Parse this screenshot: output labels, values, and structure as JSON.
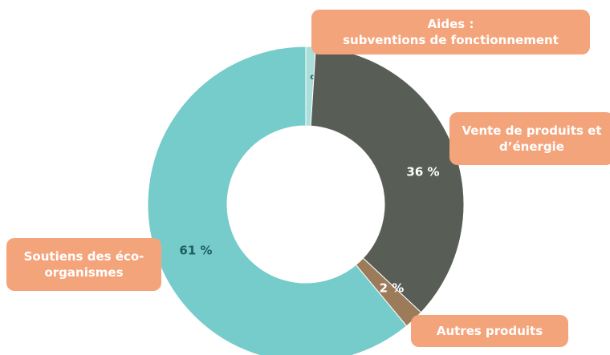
{
  "chart_data": {
    "type": "donut",
    "categories": [
      "Aides :\nsubventions de fonctionnement",
      "Vente de produits et\nd’énergie",
      "Autres produits",
      "Soutiens des éco-\norganismes"
    ],
    "values": [
      1,
      36,
      2,
      61
    ],
    "value_labels": [
      "1 %",
      "36 %",
      "2 %",
      "61 %"
    ],
    "colors": [
      "#a9dedb",
      "#585e56",
      "#9c7b5b",
      "#76cbcb"
    ]
  }
}
